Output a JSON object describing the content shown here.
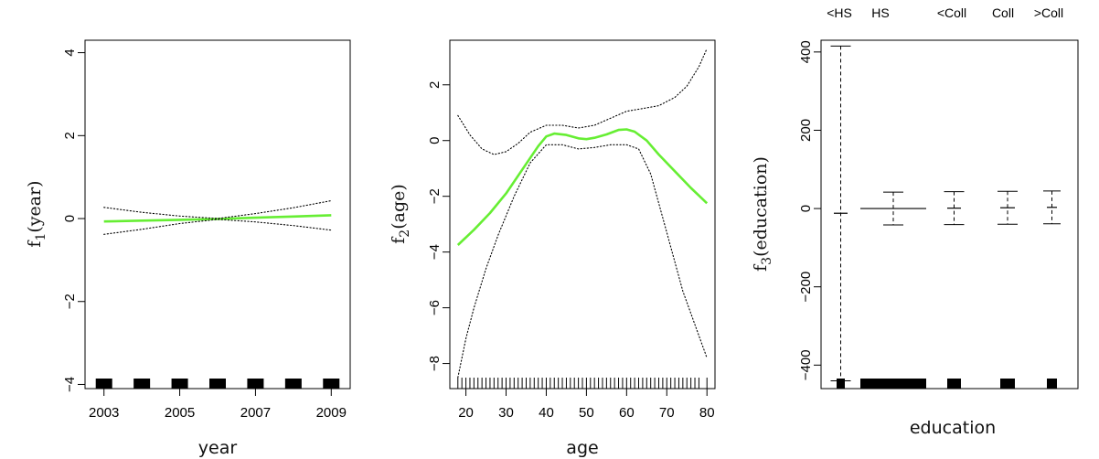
{
  "chart_data": [
    {
      "type": "line",
      "xlabel": "year",
      "ylabel": "f1(year)",
      "ylabel_main": "f",
      "ylabel_sub": "1",
      "ylabel_arg": "(year)",
      "xlim": [
        2002.5,
        2009.5
      ],
      "ylim": [
        -4.1,
        4.3
      ],
      "x_ticks": [
        2003,
        2005,
        2007,
        2009
      ],
      "x_tick_labels": [
        "2003",
        "2005",
        "2007",
        "2009"
      ],
      "y_ticks": [
        -4,
        -2,
        0,
        2,
        4
      ],
      "y_tick_labels": [
        "−4",
        "−2",
        "0",
        "2",
        "4"
      ],
      "series": [
        {
          "role": "fit",
          "color": "#66ee33",
          "dash": "solid",
          "x": [
            2003,
            2004,
            2005,
            2006,
            2007,
            2008,
            2009
          ],
          "y": [
            -0.07,
            -0.05,
            -0.03,
            -0.01,
            0.02,
            0.05,
            0.08
          ]
        },
        {
          "role": "upper",
          "color": "#000000",
          "dash": "dotted",
          "x": [
            2003,
            2004,
            2005,
            2006,
            2007,
            2008,
            2009
          ],
          "y": [
            0.27,
            0.15,
            0.06,
            0.0,
            0.12,
            0.26,
            0.43
          ]
        },
        {
          "role": "lower",
          "color": "#000000",
          "dash": "dotted",
          "x": [
            2003,
            2004,
            2005,
            2006,
            2007,
            2008,
            2009
          ],
          "y": [
            -0.38,
            -0.26,
            -0.12,
            -0.02,
            -0.08,
            -0.17,
            -0.28
          ]
        }
      ],
      "rug": [
        2003,
        2004,
        2005,
        2006,
        2007,
        2008,
        2009
      ]
    },
    {
      "type": "line",
      "xlabel": "age",
      "ylabel": "f2(age)",
      "ylabel_main": "f",
      "ylabel_sub": "2",
      "ylabel_arg": "(age)",
      "xlim": [
        16,
        82
      ],
      "ylim": [
        -8.9,
        3.6
      ],
      "x_ticks": [
        20,
        30,
        40,
        50,
        60,
        70,
        80
      ],
      "x_tick_labels": [
        "20",
        "30",
        "40",
        "50",
        "60",
        "70",
        "80"
      ],
      "y_ticks": [
        -8,
        -6,
        -4,
        -2,
        0,
        2
      ],
      "y_tick_labels": [
        "−8",
        "−6",
        "−4",
        "−2",
        "0",
        "2"
      ],
      "series": [
        {
          "role": "fit",
          "color": "#66ee33",
          "dash": "solid",
          "x": [
            18,
            22,
            26,
            30,
            34,
            38,
            40,
            42,
            45,
            48,
            50,
            52,
            55,
            58,
            60,
            62,
            65,
            68,
            72,
            76,
            80
          ],
          "y": [
            -3.75,
            -3.2,
            -2.6,
            -1.9,
            -1.05,
            -0.2,
            0.15,
            0.25,
            0.2,
            0.08,
            0.05,
            0.1,
            0.22,
            0.38,
            0.4,
            0.32,
            0.0,
            -0.5,
            -1.1,
            -1.7,
            -2.25
          ]
        },
        {
          "role": "upper",
          "color": "#000000",
          "dash": "dotted",
          "x": [
            18,
            21,
            24,
            27,
            30,
            33,
            36,
            40,
            44,
            48,
            52,
            56,
            60,
            64,
            68,
            72,
            75,
            78,
            80
          ],
          "y": [
            0.9,
            0.2,
            -0.3,
            -0.5,
            -0.4,
            -0.1,
            0.3,
            0.55,
            0.55,
            0.45,
            0.55,
            0.8,
            1.05,
            1.15,
            1.25,
            1.55,
            1.95,
            2.65,
            3.3
          ]
        },
        {
          "role": "lower",
          "color": "#000000",
          "dash": "dotted",
          "x": [
            18,
            20,
            22,
            25,
            28,
            32,
            36,
            40,
            44,
            48,
            52,
            56,
            60,
            63,
            66,
            70,
            74,
            77,
            80
          ],
          "y": [
            -8.5,
            -7.1,
            -6.0,
            -4.6,
            -3.4,
            -2.0,
            -0.8,
            -0.15,
            -0.15,
            -0.3,
            -0.25,
            -0.15,
            -0.15,
            -0.3,
            -1.2,
            -3.3,
            -5.4,
            -6.6,
            -7.8
          ]
        }
      ],
      "rug": [
        18,
        19,
        20,
        21,
        22,
        23,
        24,
        25,
        26,
        27,
        28,
        29,
        30,
        31,
        32,
        33,
        34,
        35,
        36,
        37,
        38,
        39,
        40,
        41,
        42,
        43,
        44,
        45,
        46,
        47,
        48,
        49,
        50,
        51,
        52,
        53,
        54,
        55,
        56,
        57,
        58,
        59,
        60,
        61,
        62,
        63,
        64,
        65,
        66,
        67,
        68,
        69,
        70,
        71,
        72,
        73,
        74,
        75,
        76,
        77,
        78,
        80
      ]
    },
    {
      "type": "bar",
      "xlabel": "education",
      "ylabel": "f3(education)",
      "ylabel_main": "f",
      "ylabel_sub": "3",
      "ylabel_arg": "(education)",
      "ylim": [
        -460,
        430
      ],
      "y_ticks": [
        -400,
        -200,
        0,
        200,
        400
      ],
      "y_tick_labels": [
        "−400",
        "−200",
        "0",
        "200",
        "400"
      ],
      "categories": [
        "<HS",
        "HS",
        "<Coll",
        "Coll",
        ">Coll"
      ],
      "levels": [
        {
          "value": -12,
          "upper": 415,
          "lower": -440
        },
        {
          "value": 0,
          "upper": 42,
          "lower": -42
        },
        {
          "value": 1,
          "upper": 43,
          "lower": -41
        },
        {
          "value": 2,
          "upper": 44,
          "lower": -40
        },
        {
          "value": 3,
          "upper": 45,
          "lower": -39
        }
      ]
    }
  ]
}
